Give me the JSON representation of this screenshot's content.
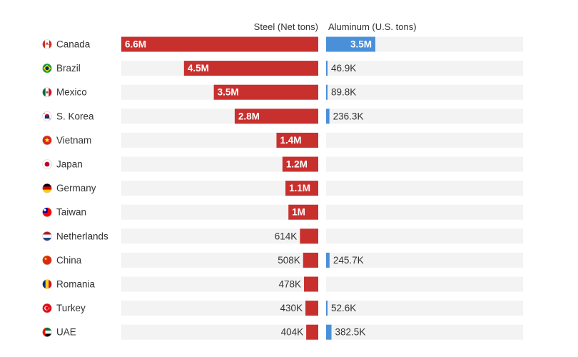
{
  "chart_data": {
    "type": "bar",
    "steel_header": "Steel (Net tons)",
    "aluminum_header": "Aluminum (U.S. tons)",
    "colors": {
      "steel": "#c8302e",
      "aluminum": "#4a90d9",
      "track": "#f3f3f3",
      "text": "#333333"
    },
    "steel_scale_max": 6.6,
    "aluminum_scale_max": 14.0,
    "rows": [
      {
        "country": "Canada",
        "flag": "canada-flag-icon",
        "steel": 6.6,
        "steel_label": "6.6M",
        "aluminum": 3.5,
        "aluminum_label": "3.5M"
      },
      {
        "country": "Brazil",
        "flag": "brazil-flag-icon",
        "steel": 4.5,
        "steel_label": "4.5M",
        "aluminum": 0.0469,
        "aluminum_label": "46.9K"
      },
      {
        "country": "Mexico",
        "flag": "mexico-flag-icon",
        "steel": 3.5,
        "steel_label": "3.5M",
        "aluminum": 0.0898,
        "aluminum_label": "89.8K"
      },
      {
        "country": "S. Korea",
        "flag": "south-korea-flag-icon",
        "steel": 2.8,
        "steel_label": "2.8M",
        "aluminum": 0.2363,
        "aluminum_label": "236.3K"
      },
      {
        "country": "Vietnam",
        "flag": "vietnam-flag-icon",
        "steel": 1.4,
        "steel_label": "1.4M",
        "aluminum": null,
        "aluminum_label": ""
      },
      {
        "country": "Japan",
        "flag": "japan-flag-icon",
        "steel": 1.2,
        "steel_label": "1.2M",
        "aluminum": null,
        "aluminum_label": ""
      },
      {
        "country": "Germany",
        "flag": "germany-flag-icon",
        "steel": 1.1,
        "steel_label": "1.1M",
        "aluminum": null,
        "aluminum_label": ""
      },
      {
        "country": "Taiwan",
        "flag": "taiwan-flag-icon",
        "steel": 1.0,
        "steel_label": "1M",
        "aluminum": null,
        "aluminum_label": ""
      },
      {
        "country": "Netherlands",
        "flag": "netherlands-flag-icon",
        "steel": 0.614,
        "steel_label": "614K",
        "aluminum": null,
        "aluminum_label": ""
      },
      {
        "country": "China",
        "flag": "china-flag-icon",
        "steel": 0.508,
        "steel_label": "508K",
        "aluminum": 0.2457,
        "aluminum_label": "245.7K"
      },
      {
        "country": "Romania",
        "flag": "romania-flag-icon",
        "steel": 0.478,
        "steel_label": "478K",
        "aluminum": null,
        "aluminum_label": ""
      },
      {
        "country": "Turkey",
        "flag": "turkey-flag-icon",
        "steel": 0.43,
        "steel_label": "430K",
        "aluminum": 0.0526,
        "aluminum_label": "52.6K"
      },
      {
        "country": "UAE",
        "flag": "uae-flag-icon",
        "steel": 0.404,
        "steel_label": "404K",
        "aluminum": 0.3825,
        "aluminum_label": "382.5K"
      }
    ]
  }
}
